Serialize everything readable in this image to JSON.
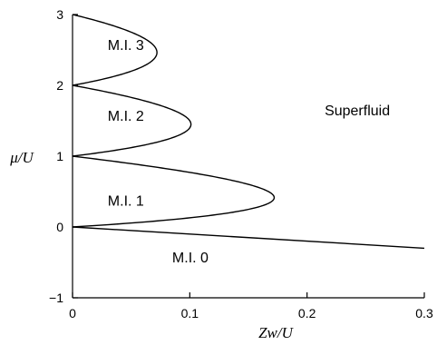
{
  "chart_data": {
    "type": "line",
    "title": "",
    "xlabel": "Zw/U",
    "ylabel": "μ/U",
    "xlim": [
      0,
      0.3
    ],
    "ylim": [
      -1,
      3
    ],
    "x_ticks": [
      0,
      0.1,
      0.2,
      0.3
    ],
    "x_tick_labels": [
      "0",
      "0.1",
      "0.2",
      "0.3"
    ],
    "y_ticks": [
      -1,
      0,
      1,
      2,
      3
    ],
    "y_tick_labels": [
      "−1",
      "0",
      "1",
      "2",
      "3"
    ],
    "grid": false,
    "lobes": [
      {
        "n": 1,
        "mu_min": 0,
        "mu_max": 1,
        "tip_x": 0.172,
        "tip_y": 0.414
      },
      {
        "n": 2,
        "mu_min": 1,
        "mu_max": 2,
        "tip_x": 0.101,
        "tip_y": 1.449
      },
      {
        "n": 3,
        "mu_min": 2,
        "mu_max": 3,
        "tip_x": 0.072,
        "tip_y": 2.464
      }
    ],
    "boundary_line": {
      "x": [
        0,
        0.3
      ],
      "y": [
        0,
        -0.3
      ]
    },
    "region_labels": [
      {
        "text": "M.I. 3",
        "x": 0.03,
        "y": 2.5
      },
      {
        "text": "M.I. 2",
        "x": 0.03,
        "y": 1.5
      },
      {
        "text": "M.I. 1",
        "x": 0.03,
        "y": 0.3
      },
      {
        "text": "Superfluid",
        "x": 0.215,
        "y": 1.58
      },
      {
        "text": "M.I. 0",
        "x": 0.085,
        "y": -0.5
      }
    ]
  }
}
